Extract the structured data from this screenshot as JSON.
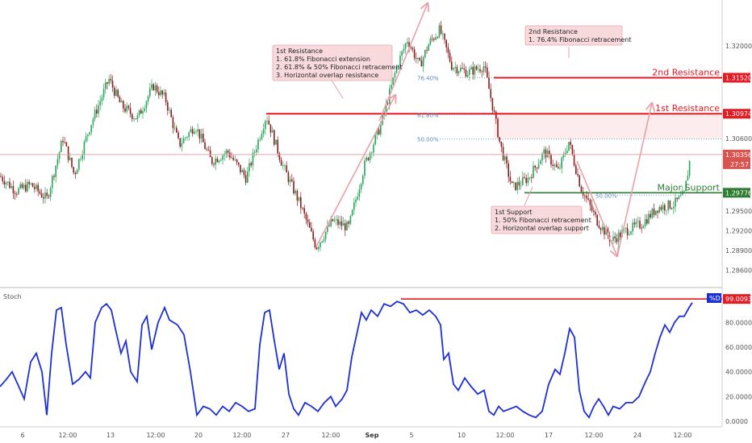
{
  "chart_data": [
    {
      "type": "candlestick",
      "title": "",
      "y_ticks": [
        1.32,
        1.306,
        1.295,
        1.292,
        1.289,
        1.286
      ],
      "y_tick_labels": [
        "1.32000",
        "1.30600",
        "1.29500",
        "1.29200",
        "1.28900",
        "1.28600"
      ],
      "y_tick_partial": "1",
      "ylim": [
        1.284,
        1.3265
      ],
      "x_tick_labels": [
        "6",
        "12:00",
        "13",
        "12:00",
        "20",
        "12:00",
        "27",
        "12:00",
        "Sep",
        "5",
        "12:00",
        "10",
        "12:00",
        "17",
        "12:00",
        "24",
        "12:00"
      ],
      "price_path": [
        [
          0,
          1.3003
        ],
        [
          20,
          1.298
        ],
        [
          38,
          1.299
        ],
        [
          58,
          1.2968
        ],
        [
          78,
          1.306
        ],
        [
          92,
          1.3005
        ],
        [
          112,
          1.308
        ],
        [
          135,
          1.315
        ],
        [
          150,
          1.311
        ],
        [
          170,
          1.309
        ],
        [
          190,
          1.314
        ],
        [
          205,
          1.312
        ],
        [
          222,
          1.305
        ],
        [
          242,
          1.308
        ],
        [
          262,
          1.3025
        ],
        [
          282,
          1.304
        ],
        [
          305,
          1.3
        ],
        [
          330,
          1.3095
        ],
        [
          350,
          1.302
        ],
        [
          372,
          1.296
        ],
        [
          392,
          1.2895
        ],
        [
          412,
          1.2935
        ],
        [
          432,
          1.2925
        ],
        [
          452,
          1.302
        ],
        [
          472,
          1.308
        ],
        [
          492,
          1.317
        ],
        [
          505,
          1.321
        ],
        [
          520,
          1.317
        ],
        [
          532,
          1.3205
        ],
        [
          545,
          1.3225
        ],
        [
          560,
          1.317
        ],
        [
          580,
          1.316
        ],
        [
          600,
          1.317
        ],
        [
          612,
          1.31
        ],
        [
          620,
          1.305
        ],
        [
          635,
          1.2985
        ],
        [
          655,
          1.3
        ],
        [
          675,
          1.304
        ],
        [
          692,
          1.301
        ],
        [
          705,
          1.3055
        ],
        [
          720,
          1.2985
        ],
        [
          740,
          1.2935
        ],
        [
          758,
          1.2905
        ],
        [
          775,
          1.292
        ],
        [
          795,
          1.293
        ],
        [
          815,
          1.2955
        ],
        [
          835,
          1.296
        ],
        [
          848,
          1.2975
        ],
        [
          856,
          1.3035
        ]
      ],
      "annotations": [
        {
          "title": "1st Resistance",
          "lines": [
            "1. 61.8% Fibonacci extension",
            "2. 61.8% & 50% Fibonacci retracement",
            "3. Horizontal overlap resistance"
          ]
        },
        {
          "title": "2nd Resistance",
          "lines": [
            "1. 76.4% Fibonacci retracement"
          ]
        },
        {
          "title": "1st Support",
          "lines": [
            "1. 50% Fibonacci retracement",
            "2. Horizontal overlap support"
          ]
        }
      ],
      "levels": [
        {
          "label": "2nd Resistance",
          "value": 1.3152,
          "value_label": "1.31520",
          "color": "#e31b23"
        },
        {
          "label": "1st Resistance",
          "value": 1.30974,
          "value_label": "1.30974",
          "color": "#e31b23"
        },
        {
          "label": "Major Support",
          "value": 1.29776,
          "value_label": "1.29776",
          "color": "#2e7d32"
        }
      ],
      "fib_labels": [
        {
          "label": "76.40%",
          "value": 1.3152
        },
        {
          "label": "61.80%",
          "value": 1.3096
        },
        {
          "label": "50.00%",
          "value": 1.3059
        },
        {
          "label": "50.00%",
          "value": 1.2974
        }
      ],
      "current_price": {
        "value": 1.30356,
        "value_label": "1.30356",
        "countdown": "27:57"
      }
    },
    {
      "type": "line",
      "title": "Stoch",
      "y_ticks": [
        0,
        20,
        40,
        60,
        80
      ],
      "y_tick_labels": [
        "0.0000",
        "20.0000",
        "40.0000",
        "60.0000",
        "80.0000"
      ],
      "ylim": [
        -2,
        105
      ],
      "series": [
        {
          "name": "%D",
          "color": "#1c2fd4",
          "points": [
            [
              0,
              28
            ],
            [
              8,
              34
            ],
            [
              15,
              40
            ],
            [
              22,
              30
            ],
            [
              30,
              18
            ],
            [
              38,
              48
            ],
            [
              45,
              55
            ],
            [
              52,
              40
            ],
            [
              58,
              5
            ],
            [
              64,
              55
            ],
            [
              70,
              90
            ],
            [
              76,
              92
            ],
            [
              82,
              62
            ],
            [
              90,
              30
            ],
            [
              98,
              34
            ],
            [
              106,
              40
            ],
            [
              112,
              35
            ],
            [
              118,
              80
            ],
            [
              126,
              92
            ],
            [
              132,
              95
            ],
            [
              138,
              90
            ],
            [
              144,
              72
            ],
            [
              150,
              55
            ],
            [
              156,
              65
            ],
            [
              162,
              40
            ],
            [
              170,
              32
            ],
            [
              176,
              78
            ],
            [
              182,
              85
            ],
            [
              188,
              58
            ],
            [
              196,
              80
            ],
            [
              204,
              92
            ],
            [
              210,
              82
            ],
            [
              220,
              78
            ],
            [
              228,
              70
            ],
            [
              236,
              40
            ],
            [
              244,
              5
            ],
            [
              252,
              12
            ],
            [
              260,
              10
            ],
            [
              268,
              5
            ],
            [
              276,
              12
            ],
            [
              284,
              8
            ],
            [
              292,
              15
            ],
            [
              300,
              12
            ],
            [
              308,
              8
            ],
            [
              316,
              10
            ],
            [
              322,
              62
            ],
            [
              328,
              88
            ],
            [
              334,
              90
            ],
            [
              340,
              65
            ],
            [
              346,
              42
            ],
            [
              352,
              55
            ],
            [
              358,
              22
            ],
            [
              364,
              10
            ],
            [
              370,
              5
            ],
            [
              378,
              15
            ],
            [
              386,
              12
            ],
            [
              394,
              8
            ],
            [
              402,
              15
            ],
            [
              410,
              20
            ],
            [
              416,
              12
            ],
            [
              424,
              18
            ],
            [
              430,
              25
            ],
            [
              436,
              52
            ],
            [
              442,
              70
            ],
            [
              448,
              88
            ],
            [
              454,
              82
            ],
            [
              460,
              90
            ],
            [
              468,
              85
            ],
            [
              476,
              95
            ],
            [
              484,
              93
            ],
            [
              492,
              97
            ],
            [
              500,
              95
            ],
            [
              508,
              88
            ],
            [
              516,
              90
            ],
            [
              524,
              86
            ],
            [
              532,
              90
            ],
            [
              540,
              85
            ],
            [
              546,
              78
            ],
            [
              550,
              50
            ],
            [
              556,
              55
            ],
            [
              562,
              30
            ],
            [
              568,
              25
            ],
            [
              576,
              35
            ],
            [
              584,
              28
            ],
            [
              592,
              22
            ],
            [
              600,
              25
            ],
            [
              606,
              8
            ],
            [
              612,
              5
            ],
            [
              618,
              12
            ],
            [
              624,
              8
            ],
            [
              632,
              10
            ],
            [
              640,
              12
            ],
            [
              648,
              8
            ],
            [
              656,
              5
            ],
            [
              664,
              3
            ],
            [
              672,
              8
            ],
            [
              680,
              30
            ],
            [
              688,
              42
            ],
            [
              694,
              38
            ],
            [
              700,
              55
            ],
            [
              706,
              75
            ],
            [
              712,
              68
            ],
            [
              718,
              25
            ],
            [
              724,
              8
            ],
            [
              730,
              3
            ],
            [
              736,
              12
            ],
            [
              742,
              18
            ],
            [
              748,
              12
            ],
            [
              754,
              5
            ],
            [
              760,
              12
            ],
            [
              768,
              10
            ],
            [
              776,
              15
            ],
            [
              784,
              15
            ],
            [
              792,
              20
            ],
            [
              800,
              32
            ],
            [
              806,
              40
            ],
            [
              812,
              55
            ],
            [
              818,
              68
            ],
            [
              824,
              78
            ],
            [
              830,
              72
            ],
            [
              836,
              80
            ],
            [
              842,
              85
            ],
            [
              848,
              85
            ],
            [
              854,
              92
            ],
            [
              858,
              96
            ]
          ]
        }
      ],
      "level": {
        "value": 99.0093,
        "value_label": "99.0093",
        "color": "#e31b23"
      }
    }
  ]
}
